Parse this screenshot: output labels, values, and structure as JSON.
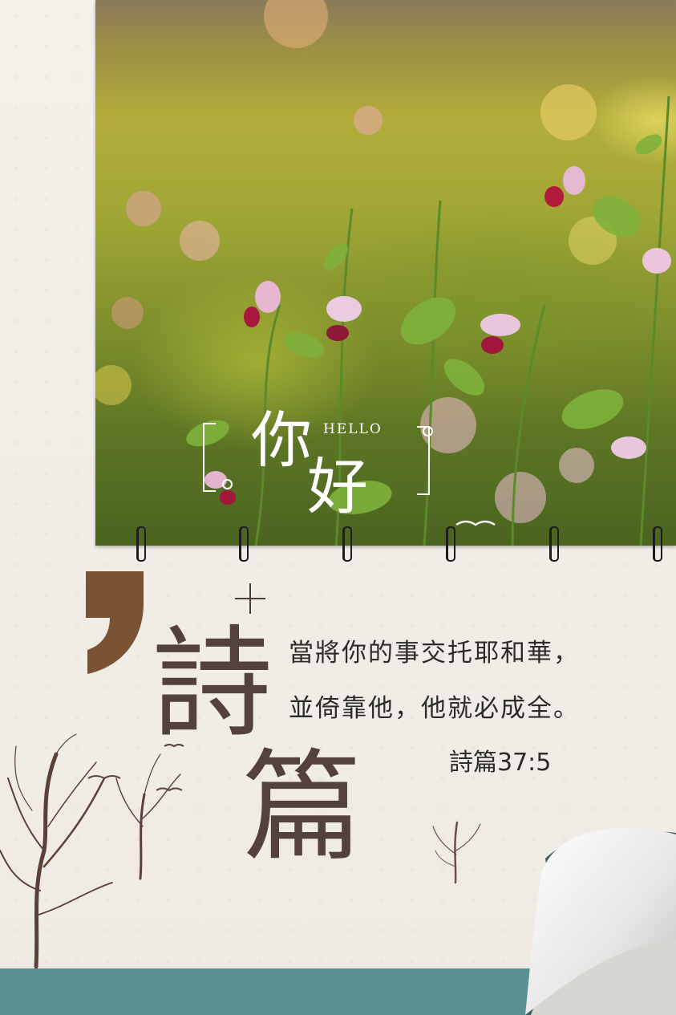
{
  "hero": {
    "greeting_ni": "你",
    "greeting_hao": "好",
    "greeting_en": "HELLO"
  },
  "title": {
    "char1": "詩",
    "char2": "篇"
  },
  "verse": {
    "line1": "當將你的事交托耶和華，",
    "line2": "並倚靠他，他就必成全。",
    "reference": "詩篇37:5"
  },
  "colors": {
    "title": "#53423b",
    "comma": "#7a5334",
    "band": "#5a8f93"
  }
}
